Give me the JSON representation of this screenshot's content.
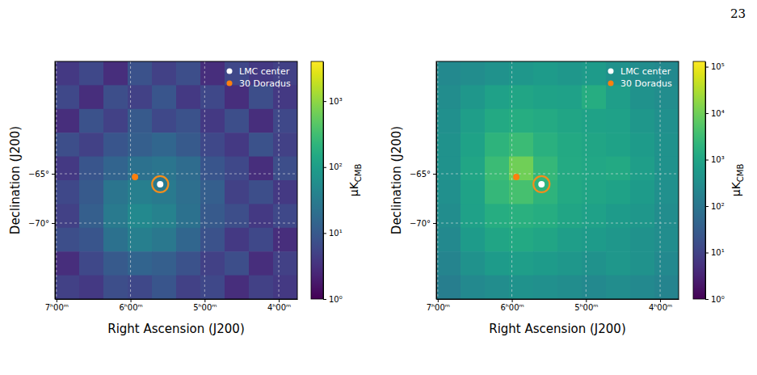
{
  "page": {
    "number": "23"
  },
  "chart_data": [
    {
      "type": "heatmap",
      "xlabel": "Right Ascension (J200)",
      "ylabel": "Declination (J200)",
      "xlim": [
        7.02,
        3.75
      ],
      "ylim": [
        -77.7,
        -53.61
      ],
      "xticks": [
        {
          "value": 7,
          "label": "7ʰ00ᵐ"
        },
        {
          "value": 6,
          "label": "6ʰ00ᵐ"
        },
        {
          "value": 5,
          "label": "5ʰ00ᵐ"
        },
        {
          "value": 4,
          "label": "4ʰ00ᵐ"
        }
      ],
      "yticks": [
        {
          "value": -65,
          "label": "−65°"
        },
        {
          "value": -70,
          "label": "−70°"
        }
      ],
      "grid": true,
      "legend": "upper right",
      "cells": [
        [
          4,
          6,
          3,
          8,
          5,
          7,
          3,
          6,
          4,
          5
        ],
        [
          6,
          3,
          7,
          5,
          9,
          4,
          6,
          3,
          7,
          4
        ],
        [
          3,
          8,
          5,
          10,
          6,
          8,
          4,
          7,
          3,
          6
        ],
        [
          7,
          5,
          9,
          12,
          15,
          10,
          6,
          4,
          8,
          5
        ],
        [
          4,
          9,
          14,
          22,
          25,
          18,
          9,
          6,
          3,
          7
        ],
        [
          6,
          10,
          25,
          35,
          30,
          20,
          12,
          5,
          7,
          4
        ],
        [
          5,
          12,
          30,
          50,
          40,
          22,
          10,
          7,
          4,
          6
        ],
        [
          7,
          9,
          22,
          35,
          28,
          15,
          8,
          4,
          6,
          3
        ],
        [
          3,
          6,
          10,
          14,
          12,
          8,
          5,
          7,
          3,
          5
        ],
        [
          5,
          4,
          7,
          6,
          9,
          5,
          6,
          3,
          5,
          4
        ]
      ],
      "colorbar": {
        "range": [
          1,
          4000
        ],
        "log": true,
        "ticks": [
          {
            "value": 1,
            "label": "10⁰"
          },
          {
            "value": 10,
            "label": "10¹"
          },
          {
            "value": 100,
            "label": "10²"
          },
          {
            "value": 1000,
            "label": "10³"
          }
        ],
        "label": "μK",
        "label_sub": "CMB"
      },
      "series": [
        {
          "name": "LMC center",
          "type": "scatter",
          "color": "#ffffff",
          "marker": "dot-ring",
          "x": [
            5.6
          ],
          "values": [
            -66.06
          ]
        },
        {
          "name": "30 Doradus",
          "type": "scatter",
          "color": "#ff7f0e",
          "marker": "dot",
          "x": [
            5.94
          ],
          "values": [
            -65.32
          ]
        }
      ]
    },
    {
      "type": "heatmap",
      "xlabel": "Right Ascension (J200)",
      "ylabel": "Declination (J200)",
      "xlim": [
        7.02,
        3.75
      ],
      "ylim": [
        -77.7,
        -53.61
      ],
      "xticks": [
        {
          "value": 7,
          "label": "7ʰ00ᵐ"
        },
        {
          "value": 6,
          "label": "6ʰ00ᵐ"
        },
        {
          "value": 5,
          "label": "5ʰ00ᵐ"
        },
        {
          "value": 4,
          "label": "4ʰ00ᵐ"
        }
      ],
      "yticks": [
        {
          "value": -65,
          "label": "−65°"
        },
        {
          "value": -70,
          "label": "−70°"
        }
      ],
      "grid": true,
      "legend": "upper right",
      "cells": [
        [
          250,
          300,
          400,
          500,
          600,
          500,
          600,
          400,
          300,
          250
        ],
        [
          300,
          500,
          800,
          1000,
          900,
          800,
          1500,
          700,
          400,
          300
        ],
        [
          350,
          700,
          1200,
          1500,
          1300,
          1000,
          900,
          800,
          500,
          350
        ],
        [
          400,
          900,
          2000,
          3000,
          1800,
          1200,
          1000,
          900,
          600,
          400
        ],
        [
          400,
          1000,
          3000,
          10000,
          2500,
          1300,
          1100,
          1200,
          700,
          400
        ],
        [
          350,
          900,
          2500,
          4000,
          2000,
          1200,
          1000,
          900,
          600,
          350
        ],
        [
          300,
          800,
          1500,
          1800,
          1500,
          1000,
          800,
          600,
          500,
          300
        ],
        [
          250,
          600,
          1000,
          1200,
          1000,
          700,
          600,
          500,
          400,
          300
        ],
        [
          200,
          400,
          600,
          700,
          600,
          500,
          400,
          500,
          400,
          250
        ],
        [
          150,
          250,
          300,
          400,
          350,
          300,
          250,
          300,
          250,
          200
        ]
      ],
      "colorbar": {
        "range": [
          1,
          130000
        ],
        "log": true,
        "ticks": [
          {
            "value": 1,
            "label": "10⁰"
          },
          {
            "value": 10,
            "label": "10¹"
          },
          {
            "value": 100,
            "label": "10²"
          },
          {
            "value": 1000,
            "label": "10³"
          },
          {
            "value": 10000,
            "label": "10⁴"
          },
          {
            "value": 100000,
            "label": "10⁵"
          }
        ],
        "label": "μK",
        "label_sub": "CMB"
      },
      "series": [
        {
          "name": "LMC center",
          "type": "scatter",
          "color": "#ffffff",
          "marker": "dot-ring",
          "x": [
            5.6
          ],
          "values": [
            -66.06
          ]
        },
        {
          "name": "30 Doradus",
          "type": "scatter",
          "color": "#ff7f0e",
          "marker": "dot",
          "x": [
            5.94
          ],
          "values": [
            -65.32
          ]
        }
      ]
    }
  ]
}
